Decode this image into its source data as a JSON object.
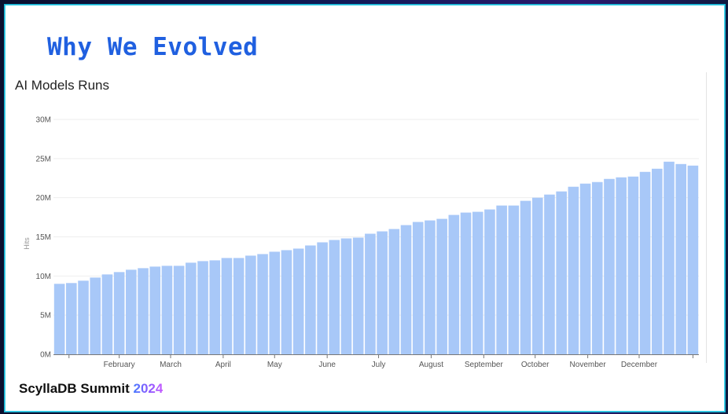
{
  "slide": {
    "title": "Why We Evolved",
    "footer_brand": "ScyllaDB Summit",
    "footer_year": "2024"
  },
  "colors": {
    "bar": "#a8c8f8",
    "grid": "#eeeeee",
    "axis_text": "#555555",
    "title_blue": "#2060e0"
  },
  "chart_data": {
    "type": "bar",
    "title": "AI Models Runs",
    "xlabel": "",
    "ylabel": "Hits",
    "ylim": [
      0,
      30000000
    ],
    "yticks": [
      {
        "value": 0,
        "label": "0M"
      },
      {
        "value": 5000000,
        "label": "5M"
      },
      {
        "value": 10000000,
        "label": "10M"
      },
      {
        "value": 15000000,
        "label": "15M"
      },
      {
        "value": 20000000,
        "label": "20M"
      },
      {
        "value": 25000000,
        "label": "25M"
      },
      {
        "value": 30000000,
        "label": "30M"
      }
    ],
    "month_labels": [
      {
        "label": "February",
        "bar_index": 5.5
      },
      {
        "label": "March",
        "bar_index": 9.8
      },
      {
        "label": "April",
        "bar_index": 14.2
      },
      {
        "label": "May",
        "bar_index": 18.5
      },
      {
        "label": "June",
        "bar_index": 22.9
      },
      {
        "label": "July",
        "bar_index": 27.2
      },
      {
        "label": "August",
        "bar_index": 31.6
      },
      {
        "label": "September",
        "bar_index": 36.0
      },
      {
        "label": "October",
        "bar_index": 40.3
      },
      {
        "label": "November",
        "bar_index": 44.7
      },
      {
        "label": "December",
        "bar_index": 49.0
      }
    ],
    "grid": true,
    "legend": "none",
    "values": [
      9.0,
      9.1,
      9.4,
      9.8,
      10.2,
      10.5,
      10.8,
      11.0,
      11.2,
      11.3,
      11.3,
      11.7,
      11.9,
      12.0,
      12.3,
      12.3,
      12.6,
      12.8,
      13.1,
      13.3,
      13.5,
      13.9,
      14.3,
      14.6,
      14.8,
      14.9,
      15.4,
      15.7,
      16.0,
      16.5,
      16.9,
      17.1,
      17.3,
      17.8,
      18.1,
      18.2,
      18.5,
      19.0,
      19.0,
      19.6,
      20.0,
      20.4,
      20.8,
      21.4,
      21.8,
      22.0,
      22.4,
      22.6,
      22.7,
      23.3,
      23.7,
      24.6,
      24.3,
      24.1
    ],
    "value_unit_multiplier": 1000000
  }
}
